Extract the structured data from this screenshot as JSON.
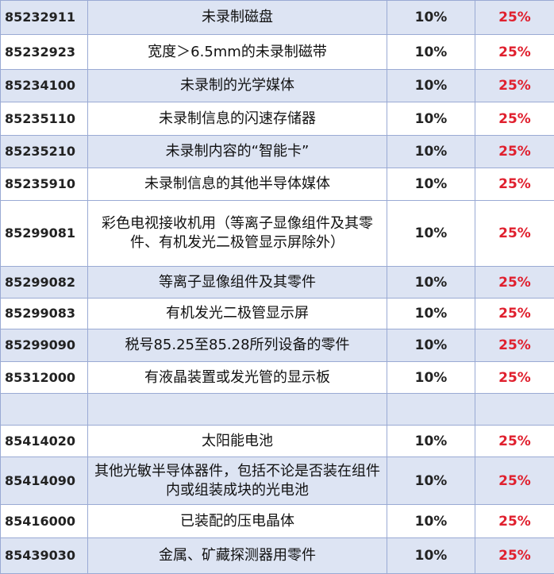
{
  "colors": {
    "shaded_row": "#dde4f3",
    "border": "#9aaad4",
    "highlight_rate": "#e0202e"
  },
  "rows": [
    {
      "code": "85232911",
      "desc": "未录制磁盘",
      "rate1": "10%",
      "rate2": "25%",
      "shaded": true
    },
    {
      "code": "85232923",
      "desc": "宽度＞6.5mm的未录制磁带",
      "rate1": "10%",
      "rate2": "25%",
      "shaded": false
    },
    {
      "code": "85234100",
      "desc": "未录制的光学媒体",
      "rate1": "10%",
      "rate2": "25%",
      "shaded": true
    },
    {
      "code": "85235110",
      "desc": "未录制信息的闪速存储器",
      "rate1": "10%",
      "rate2": "25%",
      "shaded": false
    },
    {
      "code": "85235210",
      "desc": "未录制内容的“智能卡”",
      "rate1": "10%",
      "rate2": "25%",
      "shaded": true
    },
    {
      "code": "85235910",
      "desc": "未录制信息的其他半导体媒体",
      "rate1": "10%",
      "rate2": "25%",
      "shaded": false
    },
    {
      "code": "85299081",
      "desc": "彩色电视接收机用（等离子显像组件及其零件、有机发光二极管显示屏除外）",
      "rate1": "10%",
      "rate2": "25%",
      "shaded": false
    },
    {
      "code": "85299082",
      "desc": "等离子显像组件及其零件",
      "rate1": "10%",
      "rate2": "25%",
      "shaded": true
    },
    {
      "code": "85299083",
      "desc": "有机发光二极管显示屏",
      "rate1": "10%",
      "rate2": "25%",
      "shaded": false
    },
    {
      "code": "85299090",
      "desc": "税号85.25至85.28所列设备的零件",
      "rate1": "10%",
      "rate2": "25%",
      "shaded": true
    },
    {
      "code": "85312000",
      "desc": "有液晶装置或发光管的显示板",
      "rate1": "10%",
      "rate2": "25%",
      "shaded": false
    },
    {
      "code": "",
      "desc": "",
      "rate1": "",
      "rate2": "",
      "shaded": true
    },
    {
      "code": "85414020",
      "desc": "太阳能电池",
      "rate1": "10%",
      "rate2": "25%",
      "shaded": false
    },
    {
      "code": "85414090",
      "desc": "其他光敏半导体器件，包括不论是否装在组件内或组装成块的光电池",
      "rate1": "10%",
      "rate2": "25%",
      "shaded": true
    },
    {
      "code": "85416000",
      "desc": "已装配的压电晶体",
      "rate1": "10%",
      "rate2": "25%",
      "shaded": false
    },
    {
      "code": "85439030",
      "desc": "金属、矿藏探测器用零件",
      "rate1": "10%",
      "rate2": "25%",
      "shaded": true
    }
  ]
}
